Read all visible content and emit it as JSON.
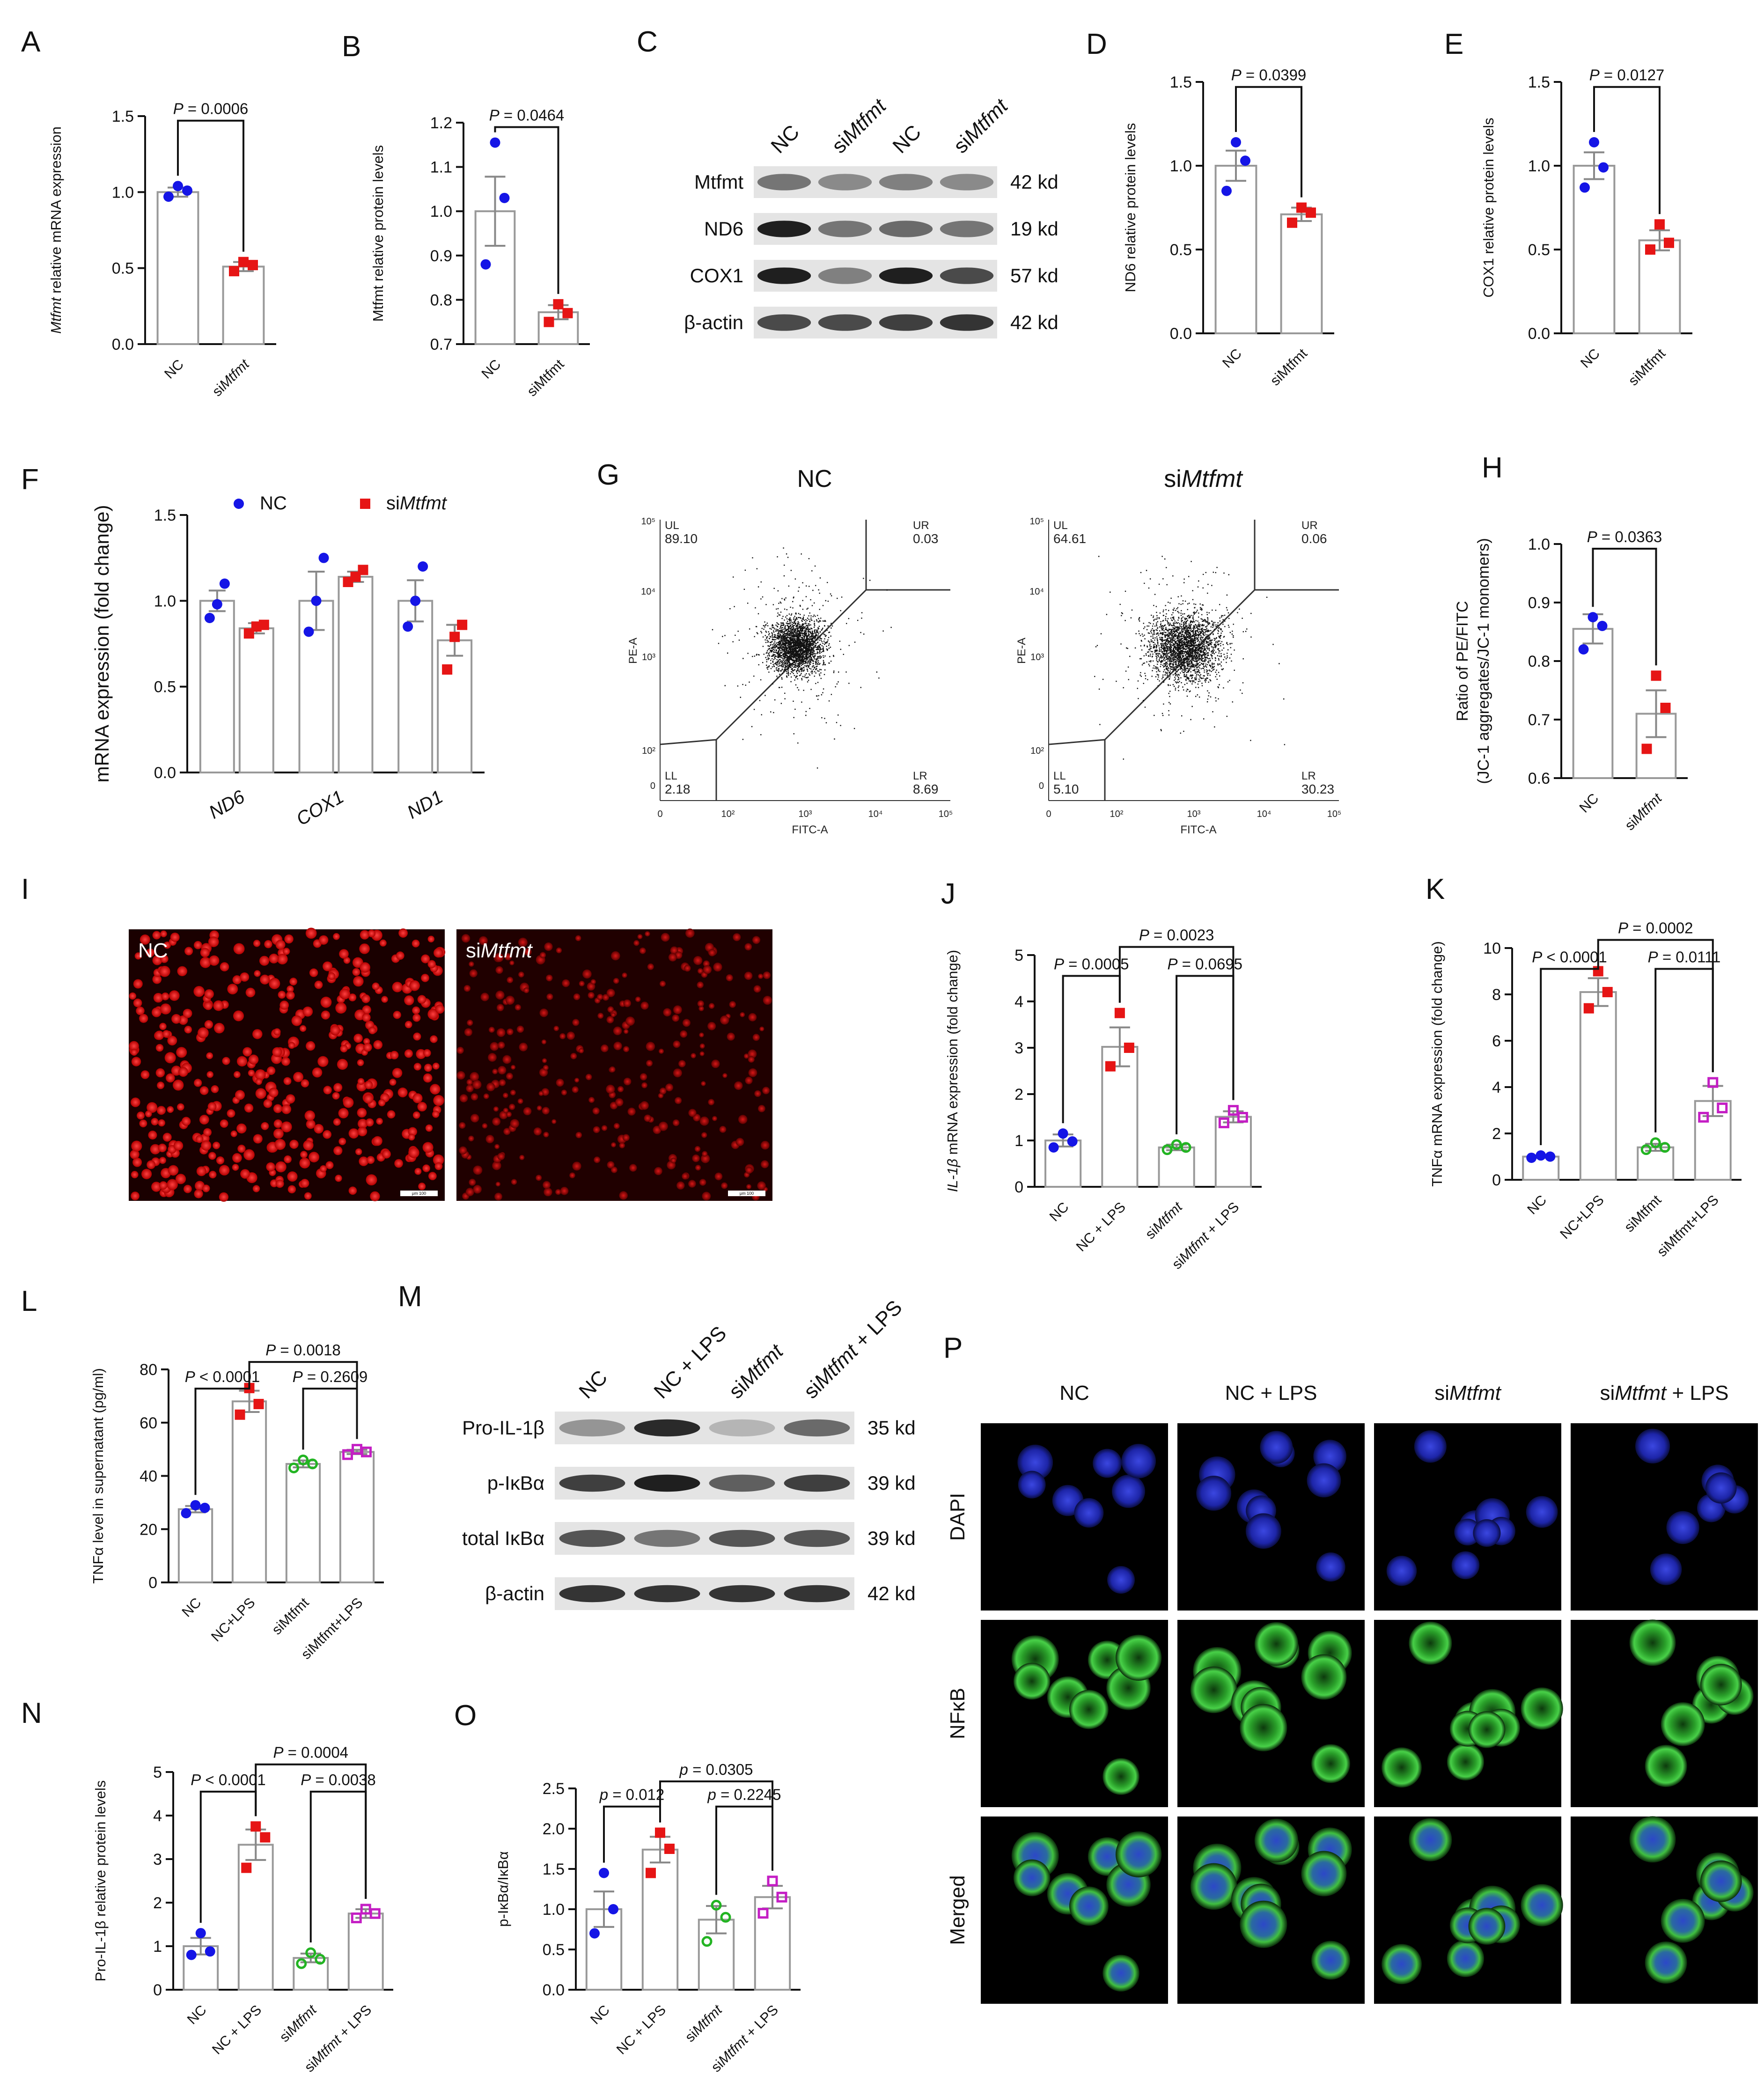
{
  "panel_labels": [
    "A",
    "B",
    "C",
    "D",
    "E",
    "F",
    "G",
    "H",
    "I",
    "J",
    "K",
    "L",
    "M",
    "N",
    "O",
    "P"
  ],
  "chart_data": [
    {
      "id": "A",
      "type": "bar",
      "categories": [
        "NC",
        "siMtfmt"
      ],
      "italic_cats": [
        false,
        true
      ],
      "ylabel": "Mtfmt relative mRNA expression",
      "ylim": [
        0,
        1.5
      ],
      "ticks": [
        "0.0",
        "0.5",
        "1.0",
        "1.5"
      ],
      "values": [
        1.0,
        0.51
      ],
      "sem": [
        0.03,
        0.03
      ],
      "points": [
        [
          0.97,
          1.01,
          1.04
        ],
        [
          0.48,
          0.52,
          0.54
        ]
      ],
      "colors": [
        "#1515e6",
        "#e61515"
      ],
      "markers": [
        "circle",
        "square"
      ],
      "comparisons": [
        {
          "label": "P = 0.0006",
          "from": 0,
          "to": 1
        }
      ]
    },
    {
      "id": "B",
      "type": "bar",
      "categories": [
        "NC",
        "siMtfmt"
      ],
      "italic_cats": [
        false,
        false
      ],
      "ylabel": "Mtfmt relative protein levels",
      "ylim": [
        0.7,
        1.2
      ],
      "ticks": [
        "0.7",
        "0.8",
        "0.9",
        "1.0",
        "1.1",
        "1.2"
      ],
      "values": [
        1.0,
        0.772
      ],
      "sem": [
        0.078,
        0.016
      ],
      "points": [
        [
          0.88,
          1.03,
          1.155
        ],
        [
          0.75,
          0.77,
          0.79
        ]
      ],
      "colors": [
        "#1515e6",
        "#e61515"
      ],
      "markers": [
        "circle",
        "square"
      ],
      "comparisons": [
        {
          "label": "P = 0.0464",
          "from": 0,
          "to": 1
        }
      ]
    },
    {
      "id": "D",
      "type": "bar",
      "categories": [
        "NC",
        "siMtfmt"
      ],
      "italic_cats": [
        false,
        false
      ],
      "ylabel": "ND6 relative protein levels",
      "ylim": [
        0,
        1.5
      ],
      "ticks": [
        "0.0",
        "0.5",
        "1.0",
        "1.5"
      ],
      "values": [
        1.0,
        0.71
      ],
      "sem": [
        0.09,
        0.04
      ],
      "points": [
        [
          0.85,
          1.03,
          1.14
        ],
        [
          0.66,
          0.72,
          0.75
        ]
      ],
      "colors": [
        "#1515e6",
        "#e61515"
      ],
      "markers": [
        "circle",
        "square"
      ],
      "comparisons": [
        {
          "label": "P = 0.0399",
          "from": 0,
          "to": 1
        }
      ]
    },
    {
      "id": "E",
      "type": "bar",
      "categories": [
        "NC",
        "siMtfmt"
      ],
      "italic_cats": [
        false,
        false
      ],
      "ylabel": "COX1 relative protein levels",
      "ylim": [
        0,
        1.5
      ],
      "ticks": [
        "0.0",
        "0.5",
        "1.0",
        "1.5"
      ],
      "values": [
        1.0,
        0.555
      ],
      "sem": [
        0.08,
        0.06
      ],
      "points": [
        [
          0.87,
          0.99,
          1.14
        ],
        [
          0.5,
          0.54,
          0.65
        ]
      ],
      "colors": [
        "#1515e6",
        "#e61515"
      ],
      "markers": [
        "circle",
        "square"
      ],
      "comparisons": [
        {
          "label": "P = 0.0127",
          "from": 0,
          "to": 1
        }
      ]
    },
    {
      "id": "F",
      "type": "bar",
      "categories": [
        "ND6",
        "COX1",
        "ND1"
      ],
      "ylabel": "mRNA expression (fold change)",
      "ylim": [
        0,
        1.5
      ],
      "ticks": [
        "0.0",
        "0.5",
        "1.0",
        "1.5"
      ],
      "series": [
        {
          "name": "NC",
          "values": [
            1.0,
            1.0,
            1.0
          ],
          "sem": [
            0.06,
            0.17,
            0.12
          ],
          "points": [
            [
              0.9,
              0.98,
              1.1
            ],
            [
              0.82,
              1.0,
              1.25
            ],
            [
              0.85,
              1.0,
              1.2
            ]
          ]
        },
        {
          "name": "siMtfmt",
          "values": [
            0.84,
            1.14,
            0.77
          ],
          "sem": [
            0.03,
            0.03,
            0.09
          ],
          "points": [
            [
              0.81,
              0.85,
              0.86
            ],
            [
              1.11,
              1.14,
              1.18
            ],
            [
              0.6,
              0.79,
              0.86
            ]
          ]
        }
      ],
      "colors": [
        "#1515e6",
        "#e61515"
      ],
      "markers": [
        "circle",
        "square"
      ]
    },
    {
      "id": "H",
      "type": "bar",
      "categories": [
        "NC",
        "siMtfmt"
      ],
      "italic_cats": [
        false,
        true
      ],
      "ylabel": "Ratio of PE/FITC (JC-1 aggregates/JC-1 monomers)",
      "ylim": [
        0.6,
        1.0
      ],
      "ticks": [
        "0.6",
        "0.7",
        "0.8",
        "0.9",
        "1.0"
      ],
      "values": [
        0.855,
        0.71
      ],
      "sem": [
        0.025,
        0.04
      ],
      "points": [
        [
          0.82,
          0.86,
          0.875
        ],
        [
          0.65,
          0.72,
          0.775
        ]
      ],
      "colors": [
        "#1515e6",
        "#e61515"
      ],
      "markers": [
        "circle",
        "square"
      ],
      "comparisons": [
        {
          "label": "P = 0.0363",
          "from": 0,
          "to": 1
        }
      ]
    },
    {
      "id": "J",
      "type": "bar",
      "categories": [
        "NC",
        "NC + LPS",
        "siMtfmt",
        "siMtfmt + LPS"
      ],
      "italic_cats": [
        false,
        false,
        true,
        true
      ],
      "ylabel": "IL-1β mRNA expression (fold change)",
      "ylim": [
        0,
        5
      ],
      "ticks": [
        "0",
        "1",
        "2",
        "3",
        "4",
        "5"
      ],
      "values": [
        1.0,
        3.02,
        0.85,
        1.51
      ],
      "sem": [
        0.13,
        0.42,
        0.06,
        0.12
      ],
      "points": [
        [
          0.85,
          0.98,
          1.15
        ],
        [
          2.6,
          3.0,
          3.75
        ],
        [
          0.8,
          0.85,
          0.91
        ],
        [
          1.38,
          1.5,
          1.65
        ]
      ],
      "colors": [
        "#1515e6",
        "#e61515",
        "#23b423",
        "#c41ec4"
      ],
      "markers": [
        "circle",
        "square",
        "open-circle",
        "open-square"
      ],
      "comparisons": [
        {
          "label": "P = 0.0005",
          "from": 0,
          "to": 1
        },
        {
          "label": "P = 0.0695",
          "from": 2,
          "to": 3
        },
        {
          "label": "P = 0.0023",
          "from": 1,
          "to": 3
        }
      ]
    },
    {
      "id": "K",
      "type": "bar",
      "categories": [
        "NC",
        "NC+LPS",
        "siMtfmt",
        "siMtfmt+LPS"
      ],
      "italic_cats": [
        false,
        false,
        false,
        false
      ],
      "ylabel": "TNFα mRNA expression (fold change)",
      "ylim": [
        0,
        10
      ],
      "ticks": [
        "0",
        "2",
        "4",
        "6",
        "8",
        "10"
      ],
      "values": [
        1.0,
        8.1,
        1.4,
        3.4
      ],
      "sem": [
        0.05,
        0.6,
        0.15,
        0.65
      ],
      "points": [
        [
          0.95,
          1.0,
          1.05
        ],
        [
          7.4,
          8.1,
          9.0
        ],
        [
          1.3,
          1.4,
          1.6
        ],
        [
          2.7,
          3.1,
          4.2
        ]
      ],
      "colors": [
        "#1515e6",
        "#e61515",
        "#23b423",
        "#c41ec4"
      ],
      "markers": [
        "circle",
        "square",
        "open-circle",
        "open-square"
      ],
      "comparisons": [
        {
          "label": "P < 0.0001",
          "from": 0,
          "to": 1
        },
        {
          "label": "P = 0.0111",
          "from": 2,
          "to": 3
        },
        {
          "label": "P = 0.0002",
          "from": 1,
          "to": 3
        }
      ]
    },
    {
      "id": "L",
      "type": "bar",
      "categories": [
        "NC",
        "NC+LPS",
        "siMtfmt",
        "siMtfmt+LPS"
      ],
      "italic_cats": [
        false,
        false,
        false,
        false
      ],
      "ylabel": "TNFα level in supernatant (pg/ml)",
      "ylim": [
        0,
        80
      ],
      "ticks": [
        "0",
        "20",
        "40",
        "60",
        "80"
      ],
      "values": [
        27.5,
        68,
        44.5,
        49
      ],
      "sem": [
        1.2,
        4,
        1.3,
        0.8
      ],
      "points": [
        [
          26,
          28,
          29
        ],
        [
          63,
          67,
          73
        ],
        [
          43,
          44.5,
          46
        ],
        [
          48,
          49,
          50
        ]
      ],
      "colors": [
        "#1515e6",
        "#e61515",
        "#23b423",
        "#c41ec4"
      ],
      "markers": [
        "circle",
        "square",
        "open-circle",
        "open-square"
      ],
      "comparisons": [
        {
          "label": "P < 0.0001",
          "from": 0,
          "to": 1
        },
        {
          "label": "P = 0.2609",
          "from": 2,
          "to": 3
        },
        {
          "label": "P = 0.0018",
          "from": 1,
          "to": 3
        }
      ]
    },
    {
      "id": "N",
      "type": "bar",
      "categories": [
        "NC",
        "NC + LPS",
        "siMtfmt",
        "siMtfmt + LPS"
      ],
      "italic_cats": [
        false,
        false,
        true,
        true
      ],
      "ylabel": "Pro-IL-1β relative protein levels",
      "ylim": [
        0,
        5
      ],
      "ticks": [
        "0",
        "1",
        "2",
        "3",
        "4",
        "5"
      ],
      "values": [
        1.0,
        3.33,
        0.73,
        1.75
      ],
      "sem": [
        0.19,
        0.35,
        0.1,
        0.1
      ],
      "points": [
        [
          0.8,
          0.88,
          1.3
        ],
        [
          2.8,
          3.5,
          3.75
        ],
        [
          0.6,
          0.7,
          0.85
        ],
        [
          1.65,
          1.75,
          1.85
        ]
      ],
      "colors": [
        "#1515e6",
        "#e61515",
        "#23b423",
        "#c41ec4"
      ],
      "markers": [
        "circle",
        "square",
        "open-circle",
        "open-square"
      ],
      "comparisons": [
        {
          "label": "P < 0.0001",
          "from": 0,
          "to": 1
        },
        {
          "label": "P = 0.0038",
          "from": 2,
          "to": 3
        },
        {
          "label": "P = 0.0004",
          "from": 1,
          "to": 3
        }
      ]
    },
    {
      "id": "O",
      "type": "bar",
      "categories": [
        "NC",
        "NC + LPS",
        "siMtfmt",
        "siMtfmt + LPS"
      ],
      "italic_cats": [
        false,
        false,
        true,
        true
      ],
      "ylabel": "p-IκBα/IκBα",
      "ylim": [
        0,
        2.5
      ],
      "ticks": [
        "0.0",
        "0.5",
        "1.0",
        "1.5",
        "2.0",
        "2.5"
      ],
      "values": [
        1.0,
        1.74,
        0.87,
        1.15
      ],
      "sem": [
        0.22,
        0.16,
        0.17,
        0.14
      ],
      "points": [
        [
          0.7,
          1.0,
          1.45
        ],
        [
          1.45,
          1.75,
          1.95
        ],
        [
          0.6,
          0.9,
          1.05
        ],
        [
          0.95,
          1.15,
          1.35
        ]
      ],
      "colors": [
        "#1515e6",
        "#e61515",
        "#23b423",
        "#c41ec4"
      ],
      "markers": [
        "circle",
        "square",
        "open-circle",
        "open-square"
      ],
      "comparisons": [
        {
          "label": "p = 0.012",
          "from": 0,
          "to": 1
        },
        {
          "label": "p = 0.2245",
          "from": 2,
          "to": 3
        },
        {
          "label": "p = 0.0305",
          "from": 1,
          "to": 3
        }
      ]
    }
  ],
  "western_C": {
    "lanes": [
      "NC",
      "siMtfmt",
      "NC",
      "siMtfmt"
    ],
    "bands": [
      {
        "label": "Mtfmt",
        "kd": "42 kd",
        "dark": [
          0.55,
          0.45,
          0.5,
          0.45
        ]
      },
      {
        "label": "ND6",
        "kd": "19 kd",
        "dark": [
          0.95,
          0.55,
          0.6,
          0.55
        ]
      },
      {
        "label": "COX1",
        "kd": "57 kd",
        "dark": [
          0.95,
          0.5,
          0.95,
          0.75
        ]
      },
      {
        "label": "β-actin",
        "kd": "42 kd",
        "dark": [
          0.75,
          0.75,
          0.8,
          0.85
        ]
      }
    ]
  },
  "western_M": {
    "lanes": [
      "NC",
      "NC + LPS",
      "siMtfmt",
      "siMtfmt + LPS"
    ],
    "bands": [
      {
        "label": "Pro-IL-1β",
        "kd": "35 kd",
        "dark": [
          0.4,
          0.9,
          0.25,
          0.6
        ]
      },
      {
        "label": "p-IκBα",
        "kd": "39 kd",
        "dark": [
          0.8,
          0.95,
          0.65,
          0.8
        ]
      },
      {
        "label": "total IκBα",
        "kd": "39 kd",
        "dark": [
          0.7,
          0.55,
          0.7,
          0.7
        ]
      },
      {
        "label": "β-actin",
        "kd": "42 kd",
        "dark": [
          0.85,
          0.85,
          0.85,
          0.85
        ]
      }
    ]
  },
  "flow_G": {
    "plots": [
      {
        "title_pre": "NC",
        "title_it": "",
        "UL": "89.10",
        "UR": "0.03",
        "LL": "2.18",
        "LR": "8.69"
      },
      {
        "title_pre": "si",
        "title_it": "Mtfmt",
        "UL": "64.61",
        "UR": "0.06",
        "LL": "5.10",
        "LR": "30.23"
      }
    ],
    "corner_labels": {
      "UL": "UL",
      "UR": "UR",
      "LL": "LL",
      "LR": "LR"
    },
    "xaxis": "FITC-A",
    "yaxis": "PE-A",
    "xticks": [
      "0",
      "10²",
      "10³",
      "10⁴",
      "10⁵"
    ],
    "yticks": [
      "0",
      "10²",
      "10³",
      "10⁴",
      "10⁵"
    ]
  },
  "image_I": {
    "labels": [
      {
        "pre": "NC",
        "it": ""
      },
      {
        "pre": "si",
        "it": "Mtfmt"
      }
    ],
    "scale": "μm 100"
  },
  "image_P": {
    "columns": [
      {
        "pre": "NC",
        "it": "",
        "post": ""
      },
      {
        "pre": "NC + LPS",
        "it": "",
        "post": ""
      },
      {
        "pre": "si",
        "it": "Mtfmt",
        "post": ""
      },
      {
        "pre": "si",
        "it": "Mtfmt",
        "post": " + LPS"
      }
    ],
    "rows": [
      "DAPI",
      "NFκB",
      "Merged"
    ]
  }
}
